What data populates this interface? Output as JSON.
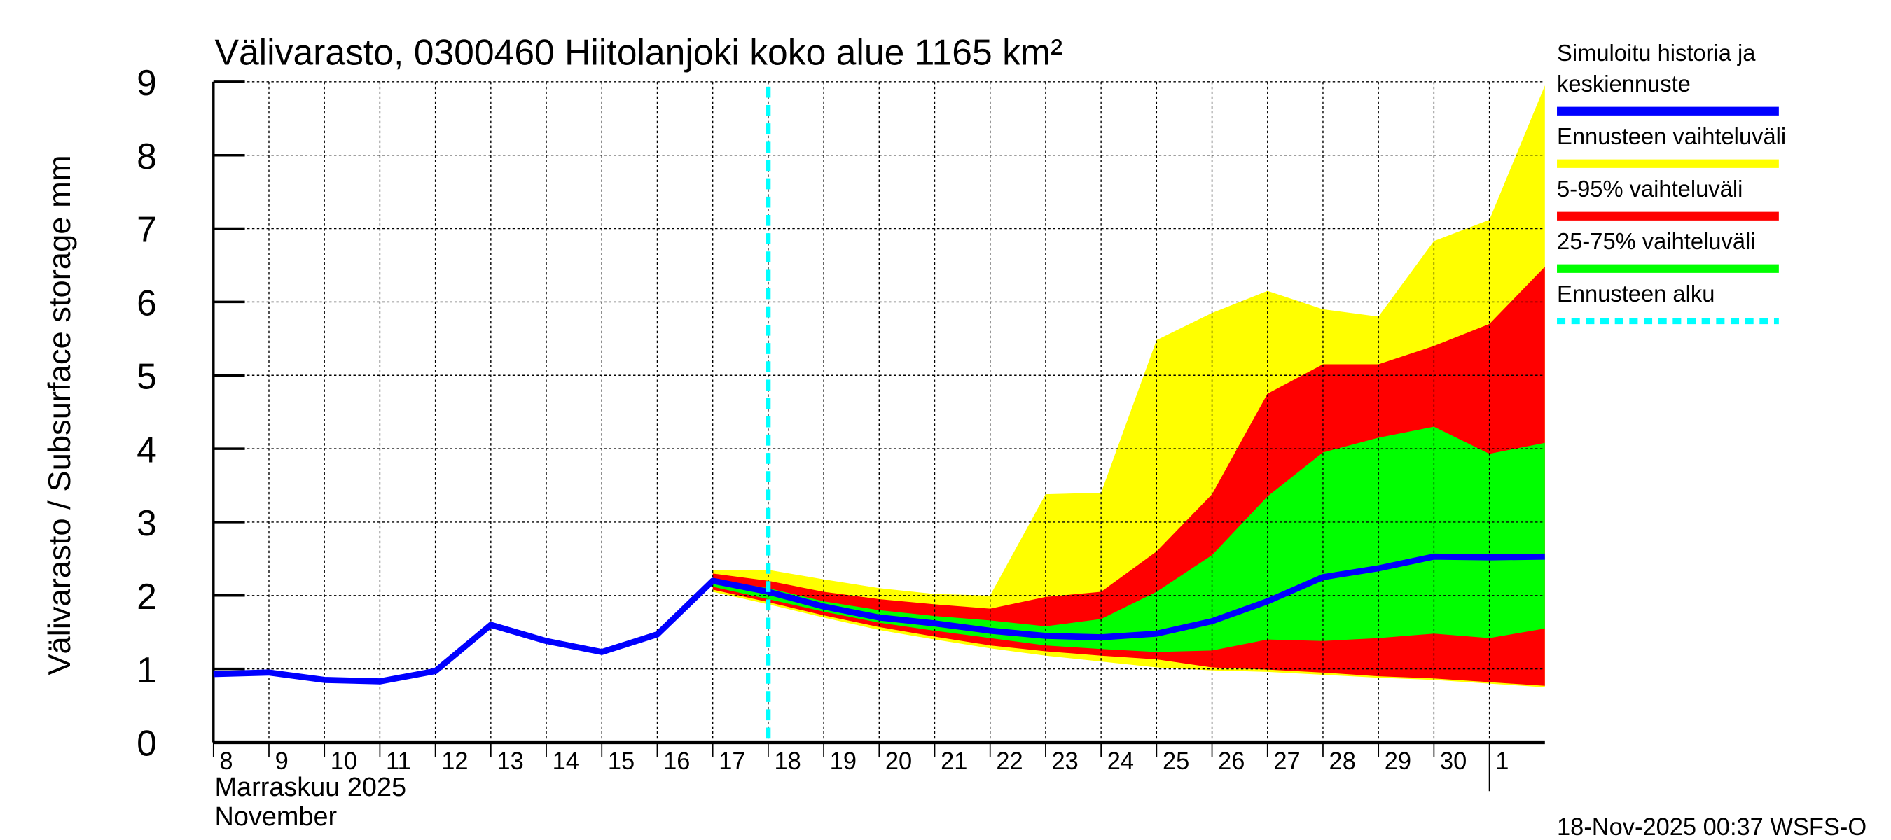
{
  "chart_data": {
    "type": "area",
    "title": "Välivarasto, 0300460 Hiitolanjoki koko alue 1165 km²",
    "ylabel": "Välivarasto / Subsurface storage  mm",
    "xlabel_line1": "Marraskuu 2025",
    "xlabel_line2": "November",
    "ylim": [
      0,
      9
    ],
    "yticks": [
      0,
      1,
      2,
      3,
      4,
      5,
      6,
      7,
      8,
      9
    ],
    "grid": true,
    "legend_position": "right",
    "x_tick_labels": [
      "8",
      "9",
      "10",
      "11",
      "12",
      "13",
      "14",
      "15",
      "16",
      "17",
      "18",
      "19",
      "20",
      "21",
      "22",
      "23",
      "24",
      "25",
      "26",
      "27",
      "28",
      "29",
      "30",
      "1"
    ],
    "x_dates": [
      "2025-11-08",
      "2025-11-09",
      "2025-11-10",
      "2025-11-11",
      "2025-11-12",
      "2025-11-13",
      "2025-11-14",
      "2025-11-15",
      "2025-11-16",
      "2025-11-17",
      "2025-11-18",
      "2025-11-19",
      "2025-11-20",
      "2025-11-21",
      "2025-11-22",
      "2025-11-23",
      "2025-11-24",
      "2025-11-25",
      "2025-11-26",
      "2025-11-27",
      "2025-11-28",
      "2025-11-29",
      "2025-11-30",
      "2025-12-01",
      "2025-12-02"
    ],
    "forecast_start": "2025-11-18",
    "median": [
      0.93,
      0.95,
      0.85,
      0.83,
      0.97,
      1.6,
      1.38,
      1.23,
      1.47,
      2.2,
      2.05,
      1.85,
      1.7,
      1.62,
      1.52,
      1.45,
      1.43,
      1.48,
      1.65,
      1.92,
      2.25,
      2.37,
      2.53,
      2.52,
      2.53
    ],
    "band_start_date": "2025-11-17",
    "bands": [
      {
        "name": "Ennusteen vaihteluväli",
        "color": "#ffff00",
        "upper": [
          2.35,
          2.35,
          2.22,
          2.1,
          2.02,
          2.0,
          3.38,
          3.4,
          5.48,
          5.85,
          6.15,
          5.9,
          5.8,
          6.83,
          7.12,
          8.95
        ],
        "lower": [
          2.05,
          1.88,
          1.7,
          1.53,
          1.4,
          1.28,
          1.18,
          1.1,
          1.02,
          0.98,
          0.96,
          0.92,
          0.88,
          0.85,
          0.8,
          0.75
        ]
      },
      {
        "name": "5-95% vaihteluväli",
        "color": "#ff0000",
        "upper": [
          2.3,
          2.2,
          2.05,
          1.95,
          1.88,
          1.82,
          1.98,
          2.05,
          2.6,
          3.38,
          4.75,
          5.15,
          5.15,
          5.4,
          5.7,
          6.48
        ],
        "lower": [
          2.08,
          1.91,
          1.73,
          1.57,
          1.44,
          1.32,
          1.24,
          1.18,
          1.13,
          1.02,
          0.99,
          0.95,
          0.9,
          0.87,
          0.82,
          0.77
        ]
      },
      {
        "name": "25-75% vaihteluväli",
        "color": "#00ff00",
        "upper": [
          2.22,
          2.1,
          1.92,
          1.8,
          1.72,
          1.66,
          1.58,
          1.68,
          2.05,
          2.55,
          3.35,
          3.95,
          4.15,
          4.3,
          3.93,
          4.08
        ],
        "lower": [
          2.12,
          1.95,
          1.78,
          1.63,
          1.52,
          1.42,
          1.32,
          1.27,
          1.23,
          1.25,
          1.4,
          1.38,
          1.42,
          1.48,
          1.42,
          1.55
        ]
      }
    ],
    "legend": [
      {
        "label": "Simuloitu historia ja",
        "label2": "keskiennuste",
        "color": "#0000ff",
        "style": "solid"
      },
      {
        "label": "Ennusteen vaihteluväli",
        "color": "#ffff00",
        "style": "solid"
      },
      {
        "label": "5-95% vaihteluväli",
        "color": "#ff0000",
        "style": "solid"
      },
      {
        "label": "25-75% vaihteluväli",
        "color": "#00ff00",
        "style": "solid"
      },
      {
        "label": "Ennusteen alku",
        "color": "#00ffff",
        "style": "dotted"
      }
    ],
    "median_color": "#0000ff",
    "forecast_line_color": "#00ffff",
    "footer": "18-Nov-2025 00:37 WSFS-O"
  }
}
